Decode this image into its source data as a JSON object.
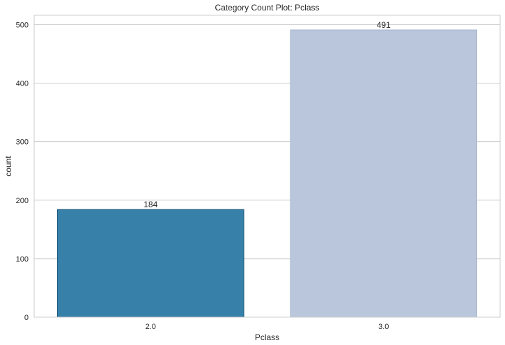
{
  "chart_data": {
    "type": "bar",
    "title": "Category Count Plot: Pclass",
    "xlabel": "Pclass",
    "ylabel": "count",
    "categories": [
      "2.0",
      "3.0"
    ],
    "values": [
      184,
      491
    ],
    "data_labels": [
      "184",
      "491"
    ],
    "colors": [
      "#3680a9",
      "#b9c6db"
    ],
    "edge_colors": [
      "#1f5a7c",
      "#a8b6cd"
    ],
    "ylim": [
      0,
      516
    ],
    "yticks": [
      0,
      100,
      200,
      300,
      400,
      500
    ],
    "ytick_labels": [
      "0",
      "100",
      "200",
      "300",
      "400",
      "500"
    ],
    "grid": "horizontal",
    "legend": "none"
  }
}
